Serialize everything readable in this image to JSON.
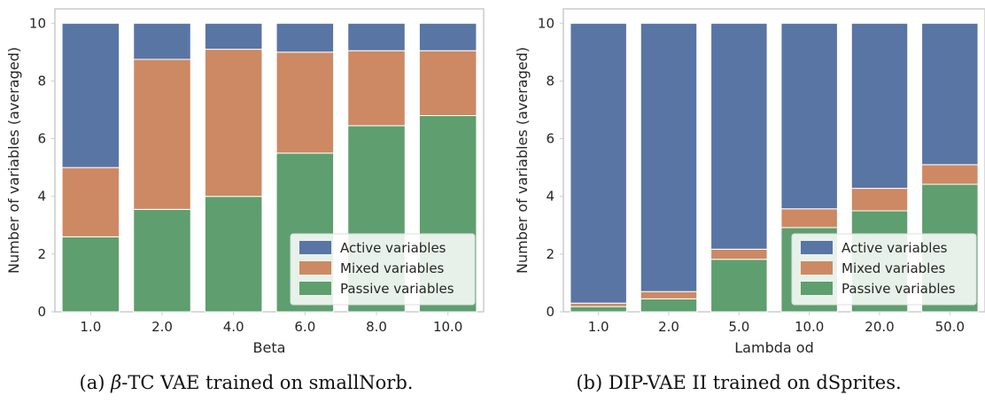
{
  "captions": [
    {
      "label": "(a)",
      "symbol": "β",
      "text": "-TC VAE trained on smallNorb."
    },
    {
      "label": "(b)",
      "symbol": "",
      "text": "DIP-VAE II trained on dSprites."
    }
  ],
  "colors": {
    "active": "#5875a4",
    "mixed": "#cc8963",
    "passive": "#5f9e6e",
    "axis": "#cccccc"
  },
  "chart_data": [
    {
      "type": "bar",
      "stacked": true,
      "xlabel": "Beta",
      "ylabel": "Number of variables (averaged)",
      "categories": [
        "1.0",
        "2.0",
        "4.0",
        "6.0",
        "8.0",
        "10.0"
      ],
      "ylim": [
        0,
        10.5
      ],
      "yticks": [
        0,
        2,
        4,
        6,
        8,
        10
      ],
      "grid": false,
      "legend_position": "lower-right",
      "series": [
        {
          "name": "Passive variables",
          "key": "passive",
          "values": [
            2.6,
            3.55,
            4.0,
            5.5,
            6.45,
            6.8
          ]
        },
        {
          "name": "Mixed variables",
          "key": "mixed",
          "values": [
            2.4,
            5.2,
            5.1,
            3.5,
            2.6,
            2.25
          ]
        },
        {
          "name": "Active variables",
          "key": "active",
          "values": [
            5.0,
            1.25,
            0.9,
            1.0,
            0.95,
            0.95
          ]
        }
      ],
      "legend_order": [
        "Active variables",
        "Mixed variables",
        "Passive variables"
      ]
    },
    {
      "type": "bar",
      "stacked": true,
      "xlabel": "Lambda od",
      "ylabel": "Number of variables (averaged)",
      "categories": [
        "1.0",
        "2.0",
        "5.0",
        "10.0",
        "20.0",
        "50.0"
      ],
      "ylim": [
        0,
        10.5
      ],
      "yticks": [
        0,
        2,
        4,
        6,
        8,
        10
      ],
      "grid": false,
      "legend_position": "lower-right",
      "series": [
        {
          "name": "Passive variables",
          "key": "passive",
          "values": [
            0.18,
            0.45,
            1.82,
            2.92,
            3.5,
            4.42
          ]
        },
        {
          "name": "Mixed variables",
          "key": "mixed",
          "values": [
            0.12,
            0.25,
            0.35,
            0.65,
            0.78,
            0.68
          ]
        },
        {
          "name": "Active variables",
          "key": "active",
          "values": [
            9.7,
            9.3,
            7.83,
            6.43,
            5.72,
            4.9
          ]
        }
      ],
      "legend_order": [
        "Active variables",
        "Mixed variables",
        "Passive variables"
      ]
    }
  ]
}
